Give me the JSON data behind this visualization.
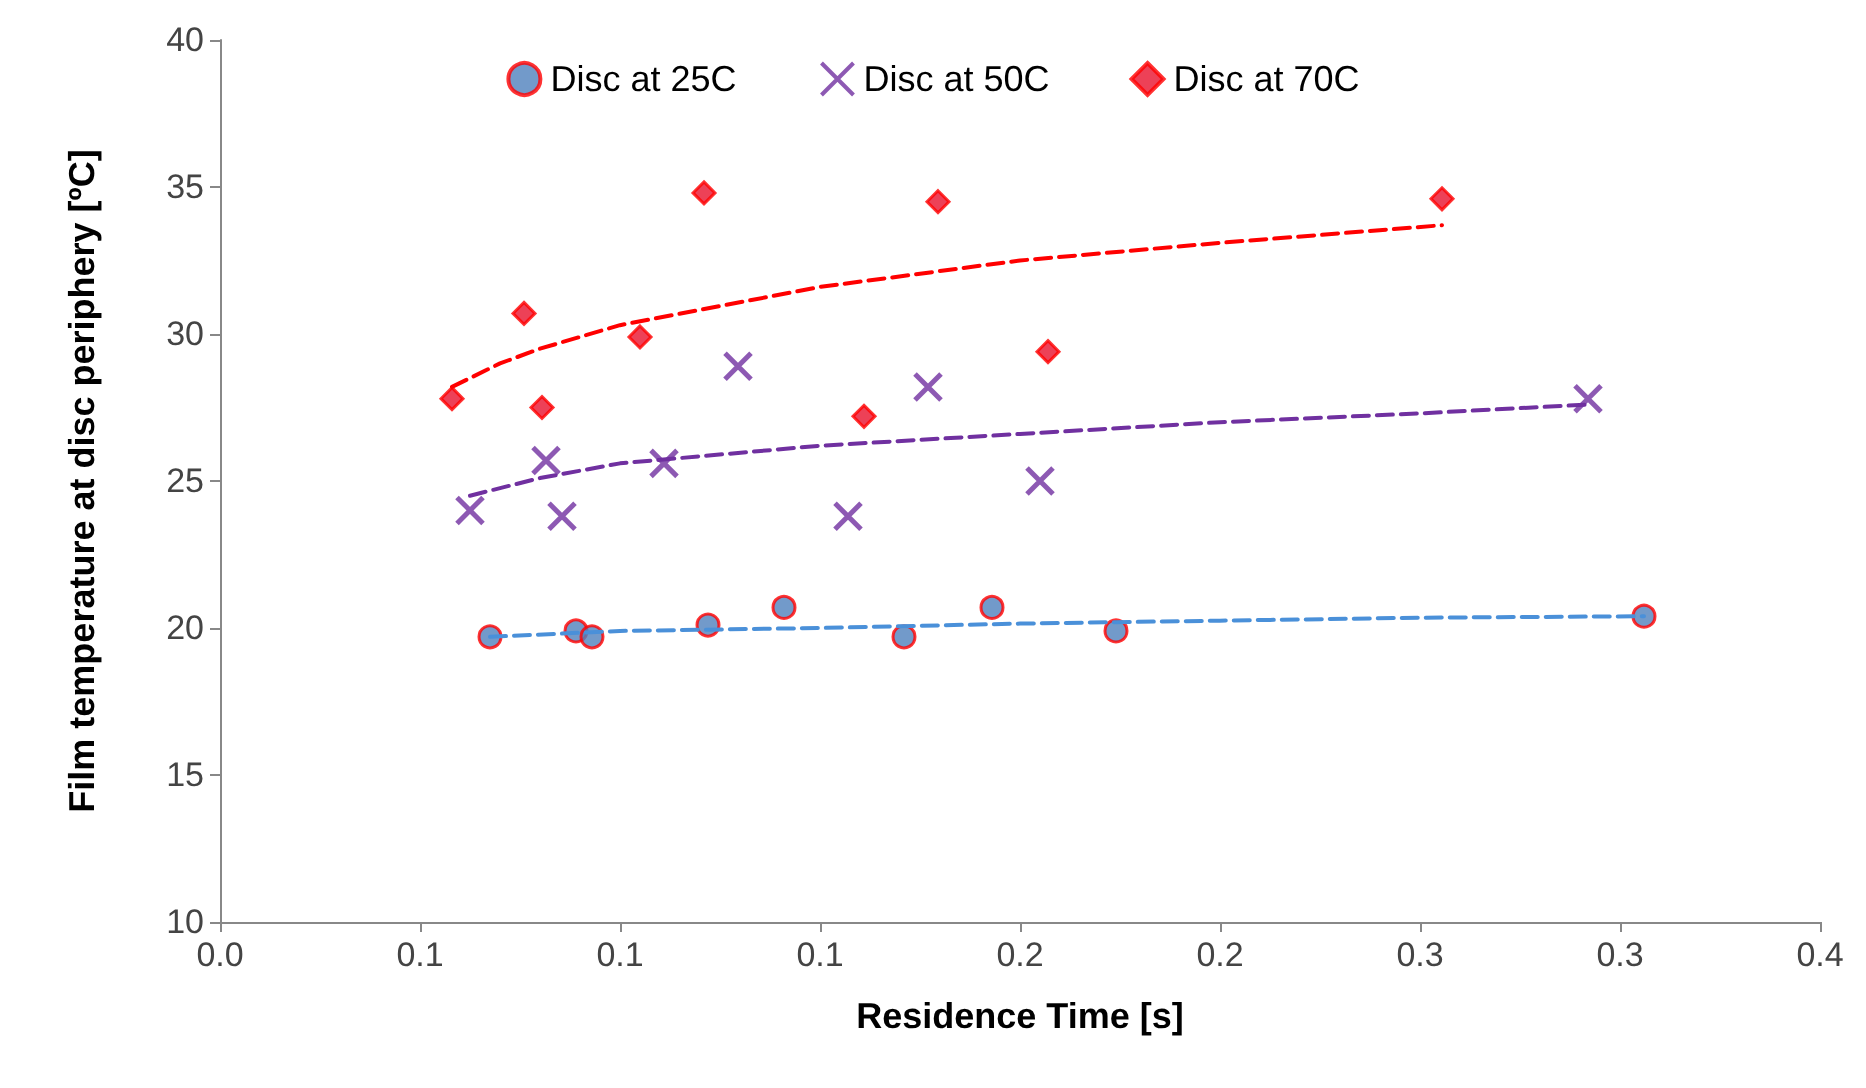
{
  "chart_data": {
    "type": "scatter",
    "xlabel": "Residence Time [s]",
    "ylabel": "Film temperature at disc periphery [ºC]",
    "xlim": [
      0,
      0.4
    ],
    "xticks": [
      {
        "value": 0,
        "label": "0.0"
      },
      {
        "value": 0.05,
        "label": "0.1"
      },
      {
        "value": 0.1,
        "label": "0.1"
      },
      {
        "value": 0.15,
        "label": "0.1"
      },
      {
        "value": 0.2,
        "label": "0.2"
      },
      {
        "value": 0.25,
        "label": "0.2"
      },
      {
        "value": 0.3,
        "label": "0.3"
      },
      {
        "value": 0.35,
        "label": "0.3"
      },
      {
        "value": 0.4,
        "label": "0.4"
      }
    ],
    "ylim": [
      10,
      40
    ],
    "yticks": [
      10,
      15,
      20,
      25,
      30,
      35,
      40
    ],
    "grid": false,
    "legend": "top",
    "series": [
      {
        "name": "Disc at 25C",
        "color": "#4f81bd",
        "marker": "circle",
        "x": [
          0.0675,
          0.089,
          0.093,
          0.122,
          0.141,
          0.171,
          0.193,
          0.224,
          0.356
        ],
        "values": [
          19.7,
          19.9,
          19.7,
          20.1,
          20.7,
          19.7,
          20.7,
          19.9,
          20.4
        ]
      },
      {
        "name": "Disc at 50C",
        "color": "#7030a0",
        "marker": "cross",
        "x": [
          0.0625,
          0.0815,
          0.0855,
          0.111,
          0.1295,
          0.157,
          0.177,
          0.205,
          0.342
        ],
        "values": [
          24.0,
          25.7,
          23.8,
          25.6,
          28.9,
          23.8,
          28.2,
          25.0,
          27.8
        ]
      },
      {
        "name": "Disc at 70C",
        "color": "#e8112d",
        "marker": "diamond",
        "x": [
          0.058,
          0.076,
          0.0805,
          0.105,
          0.121,
          0.161,
          0.1795,
          0.207,
          0.3055
        ],
        "values": [
          27.8,
          30.7,
          27.5,
          29.9,
          34.8,
          27.2,
          34.5,
          29.4,
          34.6
        ]
      },
      {
        "type": "line",
        "color": "#4a90d9",
        "marker": "none",
        "line_style": "dashed",
        "x": [
          0.0675,
          0.1,
          0.15,
          0.2,
          0.25,
          0.3,
          0.356
        ],
        "values": [
          19.7,
          19.9,
          20.0,
          20.15,
          20.25,
          20.35,
          20.4
        ]
      },
      {
        "type": "line",
        "color": "#7030a0",
        "marker": "none",
        "line_style": "dashed",
        "x": [
          0.0625,
          0.08,
          0.1,
          0.15,
          0.2,
          0.25,
          0.3,
          0.342
        ],
        "values": [
          24.5,
          25.1,
          25.6,
          26.2,
          26.6,
          27.0,
          27.3,
          27.6
        ]
      },
      {
        "type": "line",
        "color": "#ff0000",
        "marker": "none",
        "line_style": "dashed",
        "x": [
          0.058,
          0.07,
          0.08,
          0.1,
          0.15,
          0.2,
          0.25,
          0.3055
        ],
        "values": [
          28.2,
          29.0,
          29.5,
          30.3,
          31.6,
          32.5,
          33.1,
          33.7
        ]
      }
    ]
  }
}
